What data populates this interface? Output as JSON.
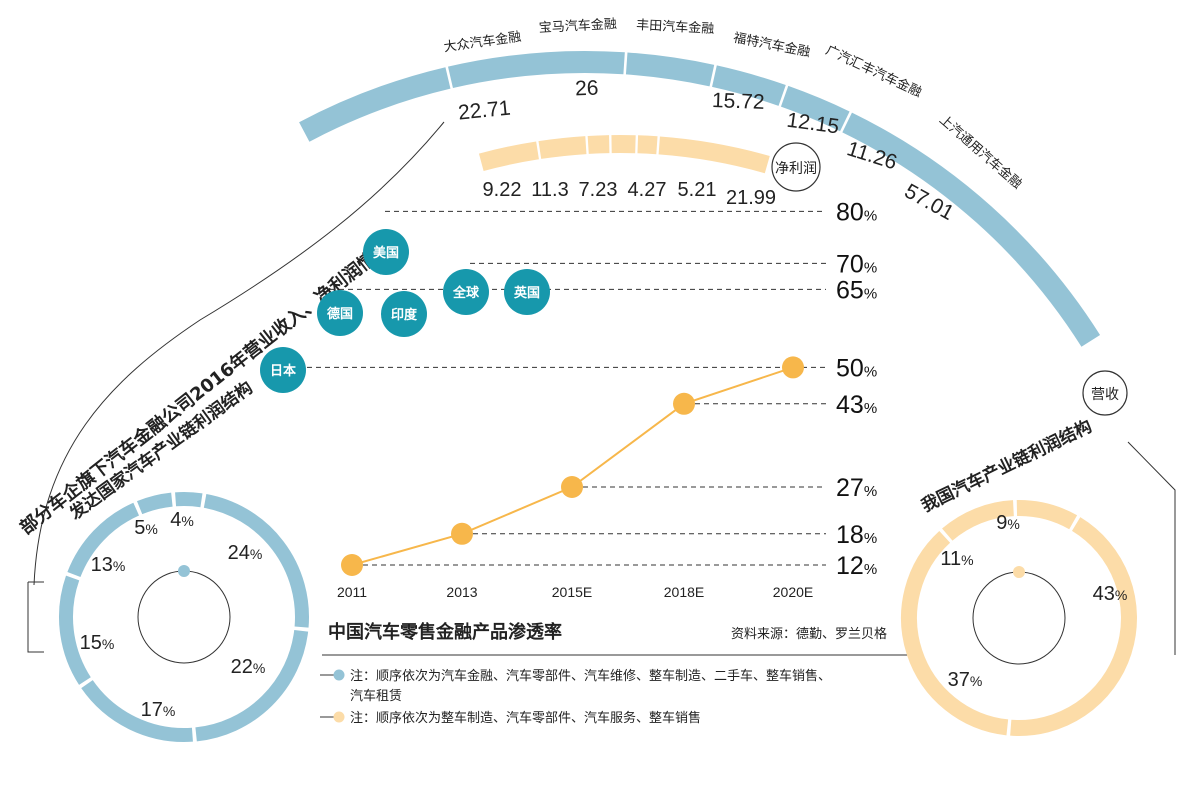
{
  "main_title": "部分车企旗下汽车金融公司2016年营业收入、净利润情况",
  "revenue_arc": {
    "companies": [
      "大众汽车金融",
      "宝马汽车金融",
      "丰田汽车金融",
      "福特汽车金融",
      "广汽汇丰汽车金融",
      "上汽通用汽车金融"
    ],
    "values": [
      "22.71",
      "26",
      "15.72",
      "12.15",
      "11.26",
      "57.01"
    ],
    "label": "营收",
    "color": "#94c3d6"
  },
  "profit_arc": {
    "values": [
      "9.22",
      "11.3",
      "7.23",
      "4.27",
      "5.21",
      "21.99"
    ],
    "label": "净利润",
    "color": "#fcdca8"
  },
  "penetration": {
    "countries": [
      {
        "name": "美国",
        "value": 80
      },
      {
        "name": "英国",
        "value": 70
      },
      {
        "name": "全球",
        "value": 70
      },
      {
        "name": "德国",
        "value": 65
      },
      {
        "name": "印度",
        "value": 65
      },
      {
        "name": "日本",
        "value": 50
      }
    ],
    "circle_color": "#1798ac"
  },
  "chart_data": [
    {
      "type": "line",
      "title": "中国汽车零售金融产品渗透率",
      "categories": [
        "2011",
        "2013",
        "2015E",
        "2018E",
        "2020E"
      ],
      "values": [
        12,
        18,
        27,
        43,
        50
      ],
      "unit": "%",
      "reference_levels": [
        80,
        70,
        65,
        50,
        43,
        27,
        18,
        12
      ],
      "line_color": "#f7b74b",
      "ylim": [
        12,
        80
      ]
    },
    {
      "type": "pie",
      "title": "发达国家汽车产业链利润结构",
      "values": [
        4,
        24,
        22,
        17,
        15,
        13,
        5
      ],
      "unit": "%",
      "color": "#94c3d6"
    },
    {
      "type": "pie",
      "title": "我国汽车产业链利润结构",
      "values": [
        9,
        43,
        37,
        11
      ],
      "unit": "%",
      "color": "#fcdca8"
    }
  ],
  "source": "资料来源：德勤、罗兰贝格",
  "notes": {
    "blue_line1": "注：顺序依次为汽车金融、汽车零部件、汽车维修、整车制造、二手车、整车销售、",
    "blue_line2": "汽车租赁",
    "orange": "注：顺序依次为整车制造、汽车零部件、汽车服务、整车销售"
  }
}
